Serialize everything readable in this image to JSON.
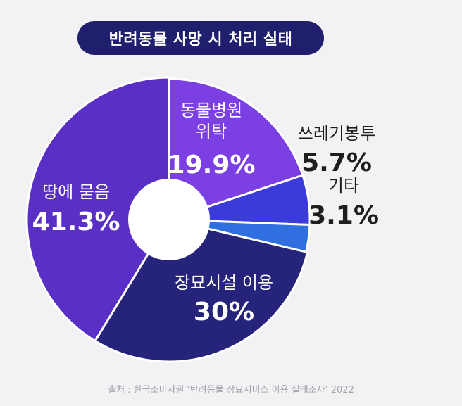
{
  "title": "반려동물 사망 시 처리 실태",
  "source": "출처 : 한국소비자원 ‘반려동물 장묘서비스 이용 실태조사’ 2022",
  "chart_data": {
    "type": "pie",
    "donut": true,
    "title": "반려동물 사망 시 처리 실태",
    "slices": [
      {
        "label": "동물병원 위탁",
        "label_lines": [
          "동물병원",
          "위탁"
        ],
        "value": 19.9,
        "value_text": "19.9%",
        "color": "#7b3fe4",
        "label_color": "#ffffff"
      },
      {
        "label": "쓰레기봉투",
        "label_lines": [
          "쓰레기봉투"
        ],
        "value": 5.7,
        "value_text": "5.7%",
        "color": "#3b3bd9",
        "label_color": "#1e1e1e"
      },
      {
        "label": "기타",
        "label_lines": [
          "기타"
        ],
        "value": 3.1,
        "value_text": "3.1%",
        "color": "#2f6fe0",
        "label_color": "#1e1e1e"
      },
      {
        "label": "장묘시설 이용",
        "label_lines": [
          "장묘시설 이용"
        ],
        "value": 30,
        "value_text": "30%",
        "color": "#25247a",
        "label_color": "#ffffff"
      },
      {
        "label": "땅에 묻음",
        "label_lines": [
          "땅에 묻음"
        ],
        "value": 41.3,
        "value_text": "41.3%",
        "color": "#5a2fc6",
        "label_color": "#ffffff"
      }
    ]
  }
}
